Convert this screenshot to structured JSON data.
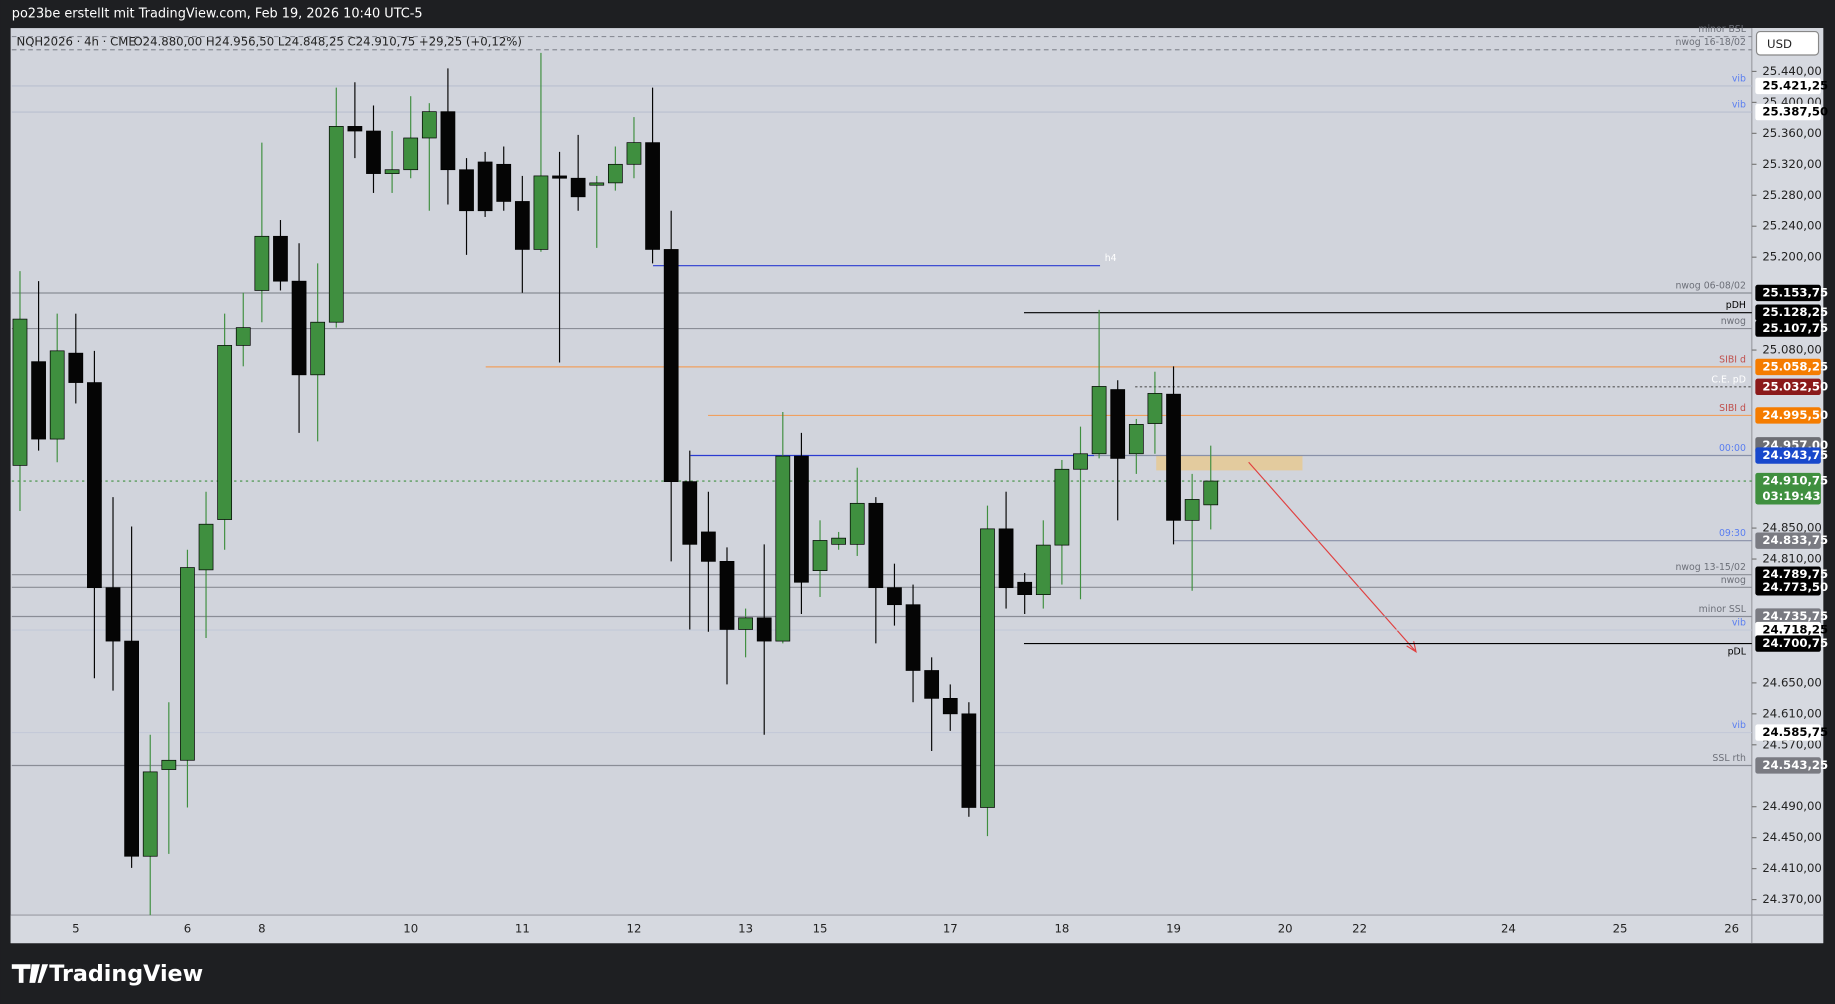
{
  "header": {
    "title": "po23be erstellt mit TradingView.com, Feb 19, 2026 10:40 UTC-5",
    "brand": "TradingView"
  },
  "chart_data": {
    "type": "candlestick",
    "symbol": "NQH2026 · 4h · CME",
    "ohlc_readout": "O24.880,00 H24.956,50 L24.848,25 C24.910,75 +29,25 (+0,12%)",
    "currency": "USD",
    "categories": [
      null,
      null,
      null,
      "5",
      null,
      null,
      null,
      null,
      null,
      "6",
      null,
      null,
      null,
      "8",
      null,
      null,
      null,
      null,
      null,
      null,
      null,
      "10",
      null,
      null,
      null,
      null,
      null,
      "11",
      null,
      null,
      null,
      null,
      null,
      "12",
      null,
      null,
      null,
      null,
      null,
      "13",
      null,
      null,
      null,
      "15",
      null,
      null,
      null,
      null,
      null,
      null,
      "17",
      null,
      null,
      null,
      null,
      null,
      "18",
      null,
      null,
      null,
      null,
      null,
      "19",
      null,
      null,
      null,
      null,
      null,
      "20",
      null,
      null,
      null,
      "22",
      null,
      null,
      null,
      null,
      null,
      null,
      null,
      "24",
      null,
      null,
      null,
      null,
      null,
      "25",
      null,
      null,
      null,
      null,
      null,
      "26"
    ],
    "open": [
      24931,
      25065,
      24965,
      25076,
      25038,
      24773,
      24704,
      24426,
      24538,
      24550,
      24796,
      24861,
      25086,
      25157,
      25227,
      25169,
      25048,
      25116,
      25369,
      25363,
      25308,
      25313,
      25354,
      25388,
      25313,
      25323,
      25320,
      25272,
      25210,
      25305,
      25302,
      25293,
      25296,
      25320,
      25348,
      25210,
      24910,
      24845,
      24807,
      24719,
      24734,
      24704,
      24943,
      24795,
      24829,
      24829,
      24882,
      24773,
      24751,
      24666,
      24630,
      24610,
      24489,
      24849,
      24780,
      24764,
      24828,
      24926,
      24946,
      25029,
      24946,
      24985,
      25023,
      24860,
      24880,
      null,
      null,
      null,
      null,
      null,
      null,
      null,
      null,
      null,
      null,
      null,
      null,
      null,
      null,
      null,
      null,
      null,
      null,
      null,
      null,
      null,
      null,
      null,
      null,
      null,
      null,
      null,
      null
    ],
    "high": [
      25182,
      25169,
      25127,
      25127,
      25079,
      24890,
      24852,
      24583,
      24625,
      24822,
      24897,
      25127,
      25154,
      25348,
      25248,
      25218,
      25192,
      25419,
      25426,
      25396,
      25363,
      25408,
      25399,
      25444,
      25328,
      25336,
      25343,
      25305,
      25464,
      25336,
      25358,
      25305,
      25343,
      25381,
      25419,
      25260,
      24950,
      24897,
      24825,
      24746,
      24829,
      25000,
      24973,
      24860,
      24845,
      24928,
      24890,
      24804,
      24777,
      24683,
      24648,
      24625,
      24879,
      24897,
      24792,
      24860,
      24938,
      24981,
      25132,
      25041,
      24991,
      25052,
      25059,
      24920,
      24956.5,
      null,
      null,
      null,
      null,
      null,
      null,
      null,
      null,
      null,
      null,
      null,
      null,
      null,
      null,
      null,
      null,
      null,
      null,
      null,
      null,
      null,
      null,
      null,
      null,
      null,
      null,
      null,
      null
    ],
    "low": [
      24872,
      24950,
      24935,
      25011,
      24656,
      24640,
      24411,
      24350,
      24429,
      24489,
      24708,
      24822,
      25059,
      25116,
      25157,
      24973,
      24962,
      25109,
      25328,
      25283,
      25283,
      25302,
      25260,
      25268,
      25203,
      25252,
      25260,
      25154,
      25207,
      25064,
      25260,
      25212,
      25286,
      25302,
      25192,
      24807,
      24719,
      24716,
      24648,
      24683,
      24583,
      24701,
      24739,
      24761,
      24822,
      24814,
      24701,
      24724,
      24625,
      24562,
      24588,
      24477,
      24452,
      24746,
      24739,
      24746,
      24777,
      24758,
      24940,
      24860,
      24920,
      24946,
      24829,
      24769,
      24848.25,
      null,
      null,
      null,
      null,
      null,
      null,
      null,
      null,
      null,
      null,
      null,
      null,
      null,
      null,
      null,
      null,
      null,
      null,
      null,
      null,
      null,
      null,
      null,
      null,
      null,
      null,
      null,
      null
    ],
    "close": [
      25120,
      24965,
      25079,
      25038,
      24773,
      24704,
      24426,
      24535,
      24550,
      24799,
      24855,
      25086,
      25109,
      25227,
      25169,
      25048,
      25116,
      25369,
      25363,
      25308,
      25313,
      25354,
      25388,
      25313,
      25260,
      25260,
      25272,
      25210,
      25305,
      25302,
      25278,
      25296,
      25320,
      25348,
      25210,
      24910,
      24829,
      24807,
      24719,
      24734,
      24704,
      24943,
      24780,
      24834,
      24837,
      24882,
      24773,
      24751,
      24666,
      24630,
      24610,
      24489,
      24849,
      24773,
      24764,
      24828,
      24926,
      24946,
      25033,
      24940,
      24984,
      25024,
      24860,
      24887,
      24910.75,
      null,
      null,
      null,
      null,
      null,
      null,
      null,
      null,
      null,
      null,
      null,
      null,
      null,
      null,
      null,
      null,
      null,
      null,
      null,
      null,
      null,
      null,
      null,
      null,
      null,
      null,
      null,
      null
    ],
    "up_color": "#3f8f3f",
    "down_color": "#050505",
    "ylim": [
      24350,
      25496
    ],
    "yticks": [
      {
        "value": 25440,
        "label": "25.440,00"
      },
      {
        "value": 25400,
        "label": "25.400,00"
      },
      {
        "value": 25360,
        "label": "25.360,00"
      },
      {
        "value": 25320,
        "label": "25.320,00"
      },
      {
        "value": 25280,
        "label": "25.280,00"
      },
      {
        "value": 25240,
        "label": "25.240,00"
      },
      {
        "value": 25200,
        "label": "25.200,00"
      },
      {
        "value": 25080,
        "label": "25.080,00"
      },
      {
        "value": 24850,
        "label": "24.850,00"
      },
      {
        "value": 24810,
        "label": "24.810,00"
      },
      {
        "value": 24650,
        "label": "24.650,00"
      },
      {
        "value": 24610,
        "label": "24.610,00"
      },
      {
        "value": 24570,
        "label": "24.570,00"
      },
      {
        "value": 24490,
        "label": "24.490,00"
      },
      {
        "value": 24450,
        "label": "24.450,00"
      },
      {
        "value": 24410,
        "label": "24.410,00"
      },
      {
        "value": 24370,
        "label": "24.370,00"
      }
    ],
    "levels": [
      {
        "label": "minor BSL",
        "value": 25485,
        "color": "#8a8d96",
        "label_color": "#6d7079"
      },
      {
        "label": "nwog 16-18/02",
        "value": 25468,
        "color": "#8a8d96",
        "label_color": "#6d7079"
      },
      {
        "label": "vib",
        "value": 25421.25,
        "value_label": "25.421,25",
        "color": "#b9bfd0",
        "label_color": "#5b7ff0",
        "box_color": "#ffffff",
        "text_color": "#000000"
      },
      {
        "label": "vib",
        "value": 25387.5,
        "value_label": "25.387,50",
        "color": "#b9bfd0",
        "label_color": "#5b7ff0",
        "box_color": "#ffffff",
        "text_color": "#000000"
      },
      {
        "label": "h4",
        "value": 25189,
        "color": "#2a3bd1",
        "label_color": "#ffffff"
      },
      {
        "label": "nwog 06-08/02",
        "value": 25153.75,
        "value_label": "25.153,75",
        "color": "#8a8d96",
        "label_color": "#6d7079",
        "box_color": "#000000",
        "text_color": "#ffffff"
      },
      {
        "label": "pDH",
        "value": 25128.25,
        "value_label": "25.128,25",
        "color": "#000000",
        "label_color": "#000000",
        "box_color": "#000000",
        "text_color": "#ffffff"
      },
      {
        "label": "nwog",
        "value": 25107.75,
        "value_label": "25.107,75",
        "color": "#8a8d96",
        "label_color": "#6d7079",
        "box_color": "#000000",
        "text_color": "#ffffff"
      },
      {
        "label": "SIBI d",
        "value": 25058.25,
        "value_label": "25.058,25",
        "color": "#f0a060",
        "label_color": "#c0504d",
        "box_color": "#f57c00",
        "text_color": "#ffffff"
      },
      {
        "label": "C.E. pD",
        "value": 25032.5,
        "value_label": "25.032,50",
        "color": "#555555",
        "label_color": "#ffffff",
        "box_color": "#8b1a1a",
        "text_color": "#ffffff"
      },
      {
        "label": "SIBI d",
        "value": 24995.5,
        "value_label": "24.995,50",
        "color": "#f0a060",
        "label_color": "#c0504d",
        "box_color": "#f57c00",
        "text_color": "#ffffff"
      },
      {
        "value": 24957,
        "value_label": "24.957,00",
        "box_color": "#6d6e74",
        "text_color": "#ffffff"
      },
      {
        "label": "00:00",
        "value": 24943.75,
        "value_label": "24.943,75",
        "color": "#2a3bd1",
        "label_color": "#5b7ff0",
        "box_color": "#1848cc",
        "text_color": "#ffffff"
      },
      {
        "label": "09:30",
        "value": 24833.75,
        "value_label": "24.833,75",
        "color": "#8890a8",
        "label_color": "#5b7ff0",
        "box_color": "#7a7b82",
        "text_color": "#ffffff"
      },
      {
        "label": "nwog 13-15/02",
        "value": 24789.75,
        "value_label": "24.789,75",
        "color": "#8a8d96",
        "label_color": "#6d7079",
        "box_color": "#000000",
        "text_color": "#ffffff"
      },
      {
        "label": "nwog",
        "value": 24773.5,
        "value_label": "24.773,50",
        "color": "#8a8d96",
        "label_color": "#6d7079",
        "box_color": "#000000",
        "text_color": "#ffffff"
      },
      {
        "label": "minor SSL",
        "value": 24735.75,
        "value_label": "24.735,75",
        "color": "#8a8d96",
        "label_color": "#6d7079",
        "box_color": "#7a7b82",
        "text_color": "#ffffff"
      },
      {
        "label": "vib",
        "value": 24718.25,
        "value_label": "24.718,25",
        "color": "#c4c9d8",
        "label_color": "#5b7ff0",
        "box_color": "#ffffff",
        "text_color": "#000000"
      },
      {
        "label": "pDL",
        "value": 24700.75,
        "value_label": "24.700,75",
        "color": "#000000",
        "label_color": "#000000",
        "box_color": "#000000",
        "text_color": "#ffffff"
      },
      {
        "label": "vib",
        "value": 24585.75,
        "value_label": "24.585,75",
        "color": "#c4c9d8",
        "label_color": "#5b7ff0",
        "box_color": "#ffffff",
        "text_color": "#000000"
      },
      {
        "label": "SSL rth",
        "value": 24543.25,
        "value_label": "24.543,25",
        "color": "#8a8d96",
        "label_color": "#6d7079",
        "box_color": "#7a7b82",
        "text_color": "#ffffff"
      }
    ],
    "last": {
      "value": 24910.75,
      "value_label": "24.910,75",
      "countdown": "03:19:43",
      "color": "#3f8f3f"
    }
  }
}
